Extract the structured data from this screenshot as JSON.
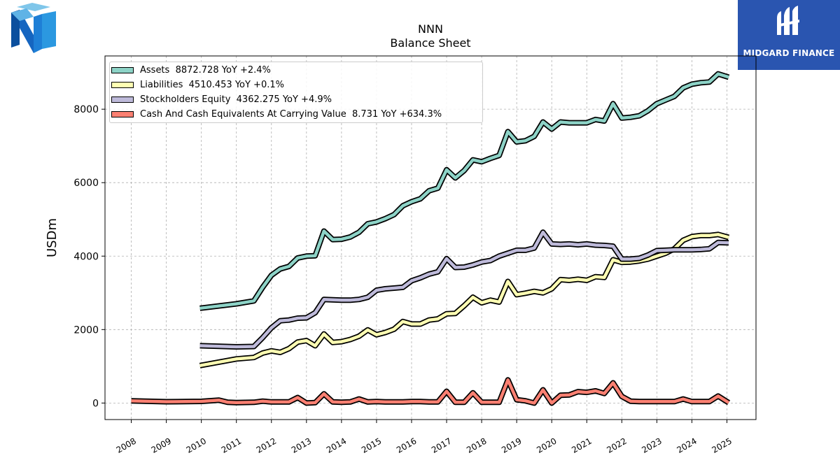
{
  "header": {
    "title": "NNN",
    "subtitle": "Balance  Sheet",
    "brand_right": "MIDGARD FINANCE"
  },
  "chart_data": {
    "type": "line",
    "title": "NNN",
    "subtitle": "Balance  Sheet",
    "xlabel": "",
    "ylabel": "USDm",
    "xlim": [
      2007.25,
      2025.83
    ],
    "ylim": [
      -450,
      9450
    ],
    "yticks": [
      0,
      2000,
      4000,
      6000,
      8000
    ],
    "xticks": [
      "2008",
      "2009",
      "2010",
      "2011",
      "2012",
      "2013",
      "2014",
      "2015",
      "2016",
      "2017",
      "2018",
      "2019",
      "2020",
      "2021",
      "2022",
      "2023",
      "2024",
      "2025"
    ],
    "grid": true,
    "legend_position": "top-left",
    "series": [
      {
        "name": "Assets",
        "legend": "Assets  8872.728 YoY +2.4%",
        "color": "#8dd3c7",
        "points": [
          [
            2009.96,
            2580
          ],
          [
            2011.0,
            2700
          ],
          [
            2011.5,
            2780
          ],
          [
            2011.75,
            3150
          ],
          [
            2012.0,
            3480
          ],
          [
            2012.25,
            3650
          ],
          [
            2012.5,
            3720
          ],
          [
            2012.75,
            3950
          ],
          [
            2013.0,
            4000
          ],
          [
            2013.25,
            4010
          ],
          [
            2013.5,
            4680
          ],
          [
            2013.75,
            4450
          ],
          [
            2014.0,
            4460
          ],
          [
            2014.25,
            4520
          ],
          [
            2014.5,
            4650
          ],
          [
            2014.75,
            4880
          ],
          [
            2015.0,
            4930
          ],
          [
            2015.25,
            5020
          ],
          [
            2015.5,
            5130
          ],
          [
            2015.75,
            5370
          ],
          [
            2016.0,
            5480
          ],
          [
            2016.25,
            5560
          ],
          [
            2016.5,
            5780
          ],
          [
            2016.75,
            5850
          ],
          [
            2017.0,
            6350
          ],
          [
            2017.25,
            6130
          ],
          [
            2017.5,
            6330
          ],
          [
            2017.75,
            6620
          ],
          [
            2018.0,
            6570
          ],
          [
            2018.25,
            6660
          ],
          [
            2018.5,
            6740
          ],
          [
            2018.75,
            7390
          ],
          [
            2019.0,
            7110
          ],
          [
            2019.25,
            7140
          ],
          [
            2019.5,
            7260
          ],
          [
            2019.75,
            7650
          ],
          [
            2020.0,
            7460
          ],
          [
            2020.25,
            7650
          ],
          [
            2020.5,
            7630
          ],
          [
            2020.75,
            7630
          ],
          [
            2021.0,
            7630
          ],
          [
            2021.25,
            7720
          ],
          [
            2021.5,
            7680
          ],
          [
            2021.75,
            8150
          ],
          [
            2022.0,
            7760
          ],
          [
            2022.25,
            7780
          ],
          [
            2022.5,
            7820
          ],
          [
            2022.75,
            7960
          ],
          [
            2023.0,
            8150
          ],
          [
            2023.25,
            8250
          ],
          [
            2023.5,
            8350
          ],
          [
            2023.75,
            8580
          ],
          [
            2024.0,
            8680
          ],
          [
            2024.25,
            8720
          ],
          [
            2024.5,
            8740
          ],
          [
            2024.75,
            8960
          ],
          [
            2025.05,
            8872
          ]
        ]
      },
      {
        "name": "Liabilities",
        "legend": "Liabilities  4510.453 YoY +0.1%",
        "color": "#ffffb3",
        "points": [
          [
            2009.96,
            1020
          ],
          [
            2011.0,
            1200
          ],
          [
            2011.5,
            1240
          ],
          [
            2011.75,
            1360
          ],
          [
            2012.0,
            1420
          ],
          [
            2012.25,
            1380
          ],
          [
            2012.5,
            1480
          ],
          [
            2012.75,
            1660
          ],
          [
            2013.0,
            1700
          ],
          [
            2013.25,
            1560
          ],
          [
            2013.5,
            1880
          ],
          [
            2013.75,
            1650
          ],
          [
            2014.0,
            1670
          ],
          [
            2014.25,
            1730
          ],
          [
            2014.5,
            1820
          ],
          [
            2014.75,
            1990
          ],
          [
            2015.0,
            1860
          ],
          [
            2015.25,
            1920
          ],
          [
            2015.5,
            2010
          ],
          [
            2015.75,
            2220
          ],
          [
            2016.0,
            2150
          ],
          [
            2016.25,
            2150
          ],
          [
            2016.5,
            2260
          ],
          [
            2016.75,
            2290
          ],
          [
            2017.0,
            2430
          ],
          [
            2017.25,
            2440
          ],
          [
            2017.5,
            2650
          ],
          [
            2017.75,
            2880
          ],
          [
            2018.0,
            2730
          ],
          [
            2018.25,
            2800
          ],
          [
            2018.5,
            2750
          ],
          [
            2018.75,
            3310
          ],
          [
            2019.0,
            2950
          ],
          [
            2019.25,
            2990
          ],
          [
            2019.5,
            3040
          ],
          [
            2019.75,
            3000
          ],
          [
            2020.0,
            3110
          ],
          [
            2020.25,
            3360
          ],
          [
            2020.5,
            3340
          ],
          [
            2020.75,
            3370
          ],
          [
            2021.0,
            3340
          ],
          [
            2021.25,
            3440
          ],
          [
            2021.5,
            3420
          ],
          [
            2021.75,
            3900
          ],
          [
            2022.0,
            3830
          ],
          [
            2022.25,
            3840
          ],
          [
            2022.5,
            3870
          ],
          [
            2022.75,
            3920
          ],
          [
            2023.0,
            4000
          ],
          [
            2023.25,
            4080
          ],
          [
            2023.5,
            4200
          ],
          [
            2023.75,
            4430
          ],
          [
            2024.0,
            4530
          ],
          [
            2024.25,
            4560
          ],
          [
            2024.5,
            4560
          ],
          [
            2024.75,
            4590
          ],
          [
            2025.05,
            4510
          ]
        ]
      },
      {
        "name": "Stockholders Equity",
        "legend": "Stockholders Equity  4362.275 YoY +4.9%",
        "color": "#bebada",
        "points": [
          [
            2009.96,
            1560
          ],
          [
            2011.0,
            1530
          ],
          [
            2011.5,
            1540
          ],
          [
            2011.75,
            1780
          ],
          [
            2012.0,
            2050
          ],
          [
            2012.25,
            2240
          ],
          [
            2012.5,
            2260
          ],
          [
            2012.75,
            2310
          ],
          [
            2013.0,
            2320
          ],
          [
            2013.25,
            2460
          ],
          [
            2013.5,
            2820
          ],
          [
            2013.75,
            2810
          ],
          [
            2014.0,
            2800
          ],
          [
            2014.25,
            2800
          ],
          [
            2014.5,
            2820
          ],
          [
            2014.75,
            2880
          ],
          [
            2015.0,
            3070
          ],
          [
            2015.25,
            3110
          ],
          [
            2015.5,
            3130
          ],
          [
            2015.75,
            3150
          ],
          [
            2016.0,
            3330
          ],
          [
            2016.25,
            3410
          ],
          [
            2016.5,
            3510
          ],
          [
            2016.75,
            3570
          ],
          [
            2017.0,
            3930
          ],
          [
            2017.25,
            3690
          ],
          [
            2017.5,
            3700
          ],
          [
            2017.75,
            3760
          ],
          [
            2018.0,
            3840
          ],
          [
            2018.25,
            3880
          ],
          [
            2018.5,
            4000
          ],
          [
            2018.75,
            4080
          ],
          [
            2019.0,
            4160
          ],
          [
            2019.25,
            4160
          ],
          [
            2019.5,
            4220
          ],
          [
            2019.75,
            4650
          ],
          [
            2020.0,
            4330
          ],
          [
            2020.25,
            4320
          ],
          [
            2020.5,
            4330
          ],
          [
            2020.75,
            4310
          ],
          [
            2021.0,
            4330
          ],
          [
            2021.25,
            4300
          ],
          [
            2021.5,
            4290
          ],
          [
            2021.75,
            4270
          ],
          [
            2022.0,
            3920
          ],
          [
            2022.25,
            3920
          ],
          [
            2022.5,
            3940
          ],
          [
            2022.75,
            4030
          ],
          [
            2023.0,
            4150
          ],
          [
            2023.25,
            4160
          ],
          [
            2023.5,
            4170
          ],
          [
            2023.75,
            4170
          ],
          [
            2024.0,
            4170
          ],
          [
            2024.25,
            4180
          ],
          [
            2024.5,
            4200
          ],
          [
            2024.75,
            4370
          ],
          [
            2025.05,
            4362
          ]
        ]
      },
      {
        "name": "Cash And Cash Equivalents At Carrying Value",
        "legend": "Cash And Cash Equivalents At Carrying Value  8.731 YoY +634.3%",
        "color": "#fb8072",
        "points": [
          [
            2008.0,
            60
          ],
          [
            2009.0,
            35
          ],
          [
            2010.0,
            45
          ],
          [
            2010.5,
            80
          ],
          [
            2010.75,
            20
          ],
          [
            2011.0,
            10
          ],
          [
            2011.5,
            20
          ],
          [
            2011.75,
            50
          ],
          [
            2012.0,
            30
          ],
          [
            2012.25,
            30
          ],
          [
            2012.5,
            30
          ],
          [
            2012.75,
            150
          ],
          [
            2013.0,
            0
          ],
          [
            2013.25,
            10
          ],
          [
            2013.5,
            250
          ],
          [
            2013.75,
            30
          ],
          [
            2014.0,
            20
          ],
          [
            2014.25,
            30
          ],
          [
            2014.5,
            110
          ],
          [
            2014.75,
            30
          ],
          [
            2015.0,
            40
          ],
          [
            2015.25,
            30
          ],
          [
            2015.5,
            30
          ],
          [
            2015.75,
            30
          ],
          [
            2016.0,
            40
          ],
          [
            2016.25,
            40
          ],
          [
            2016.5,
            30
          ],
          [
            2016.75,
            30
          ],
          [
            2017.0,
            320
          ],
          [
            2017.25,
            20
          ],
          [
            2017.5,
            20
          ],
          [
            2017.75,
            280
          ],
          [
            2018.0,
            20
          ],
          [
            2018.25,
            20
          ],
          [
            2018.5,
            20
          ],
          [
            2018.75,
            630
          ],
          [
            2019.0,
            90
          ],
          [
            2019.25,
            60
          ],
          [
            2019.5,
            0
          ],
          [
            2019.75,
            360
          ],
          [
            2020.0,
            0
          ],
          [
            2020.25,
            210
          ],
          [
            2020.5,
            220
          ],
          [
            2020.75,
            310
          ],
          [
            2021.0,
            290
          ],
          [
            2021.25,
            330
          ],
          [
            2021.5,
            260
          ],
          [
            2021.75,
            550
          ],
          [
            2022.0,
            180
          ],
          [
            2022.25,
            50
          ],
          [
            2022.5,
            40
          ],
          [
            2022.75,
            40
          ],
          [
            2023.0,
            40
          ],
          [
            2023.25,
            40
          ],
          [
            2023.5,
            40
          ],
          [
            2023.75,
            110
          ],
          [
            2024.0,
            40
          ],
          [
            2024.25,
            40
          ],
          [
            2024.5,
            40
          ],
          [
            2024.75,
            190
          ],
          [
            2025.05,
            9
          ]
        ]
      }
    ]
  }
}
